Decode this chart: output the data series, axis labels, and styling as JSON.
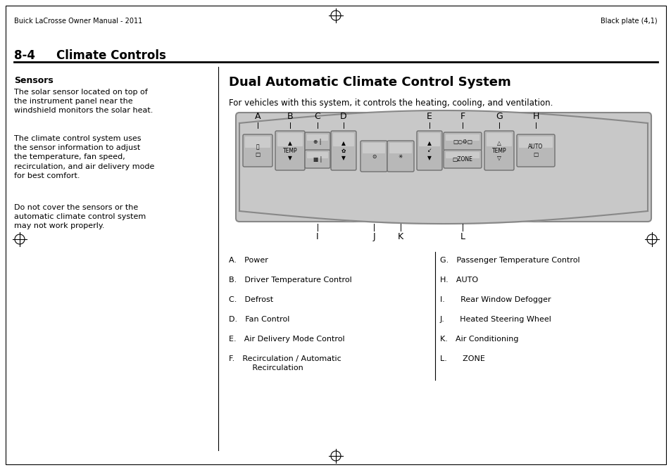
{
  "page_header_left": "Buick LaCrosse Owner Manual - 2011",
  "page_header_right": "Black plate (4,1)",
  "section_number": "8-4",
  "section_title": "Climate Controls",
  "left_heading": "Sensors",
  "left_para1": "The solar sensor located on top of\nthe instrument panel near the\nwindshield monitors the solar heat.",
  "left_para2": "The climate control system uses\nthe sensor information to adjust\nthe temperature, fan speed,\nrecirculation, and air delivery mode\nfor best comfort.",
  "left_para3": "Do not cover the sensors or the\nautomatic climate control system\nmay not work properly.",
  "right_heading": "Dual Automatic Climate Control System",
  "right_intro": "For vehicles with this system, it controls the heating, cooling, and ventilation.",
  "label_letters_top": [
    "A",
    "B",
    "C",
    "D",
    "E",
    "F",
    "G",
    "H"
  ],
  "label_letters_bottom": [
    "I",
    "J",
    "K",
    "L"
  ],
  "left_list": [
    "A. Power",
    "B. Driver Temperature Control",
    "C. Defrost",
    "D. Fan Control",
    "E. Air Delivery Mode Control",
    "F. Recirculation / Automatic\n   Recirculation"
  ],
  "right_list": [
    "G. Passenger Temperature Control",
    "H. AUTO",
    "I.  Rear Window Defogger",
    "J.  Heated Steering Wheel",
    "K. Air Conditioning",
    "L.  ZONE"
  ],
  "bg_color": "#ffffff",
  "text_color": "#000000",
  "panel_color": "#c8c8c8",
  "panel_dark": "#a0a0a0",
  "button_color": "#b8b8b8",
  "button_highlight": "#d8d8d8"
}
